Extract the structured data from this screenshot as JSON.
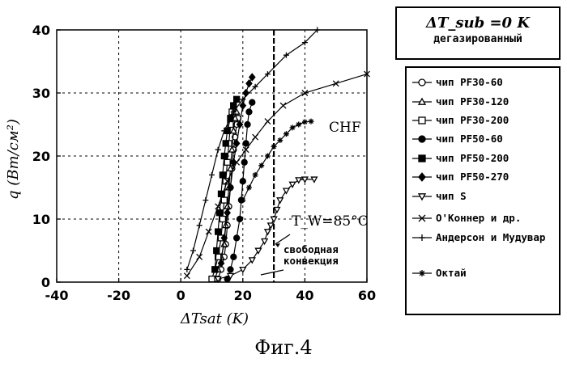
{
  "caption": "Фиг.4",
  "chart_data": {
    "type": "scatter",
    "xlabel": "ΔT_sat (K)",
    "ylabel": "q (Вт/см²)",
    "xlim": [
      -40,
      60
    ],
    "ylim": [
      0,
      40
    ],
    "xticks": [
      -40,
      -20,
      0,
      20,
      40,
      60
    ],
    "yticks": [
      0,
      10,
      20,
      30,
      40
    ],
    "xtick_labels": [
      "-40",
      "-20",
      "0",
      "20",
      "40",
      "60"
    ],
    "ytick_labels": [
      "0",
      "10",
      "20",
      "30",
      "40"
    ],
    "grid": "dashed",
    "annotations": {
      "chf": "CHF",
      "tw": "T_W=85°C",
      "free_convection": "свободная конвекция",
      "vertical_line_x": 30
    },
    "legend_title": "ΔT_sub =0 K",
    "legend_subtitle": "дегазированный",
    "series": [
      {
        "name": "чип PF30-60",
        "marker": "circle-open",
        "x": [
          12,
          13,
          14,
          14.5,
          15,
          15.5,
          16,
          16.5,
          17,
          17.5,
          18,
          18.5
        ],
        "y": [
          0.5,
          2,
          4,
          6,
          9,
          12,
          15,
          18,
          21,
          23,
          25,
          26
        ]
      },
      {
        "name": "чип PF30-120",
        "marker": "triangle-open",
        "x": [
          11,
          12,
          13,
          14,
          14.5,
          15,
          15.5,
          16,
          16.5,
          17,
          17.5,
          18
        ],
        "y": [
          0.5,
          2,
          4,
          6,
          9,
          12,
          15,
          18,
          21,
          24,
          26,
          27
        ]
      },
      {
        "name": "чип PF30-200",
        "marker": "square-open",
        "x": [
          10,
          11,
          12,
          13,
          13.5,
          14,
          14.5,
          15,
          15.5,
          16,
          16.5,
          17
        ],
        "y": [
          0.5,
          2,
          4,
          7,
          10,
          13,
          16,
          19,
          22,
          25,
          27,
          28
        ]
      },
      {
        "name": "чип PF50-60",
        "marker": "circle-filled",
        "x": [
          15,
          16,
          17,
          18,
          19,
          19.5,
          20,
          20.5,
          21,
          21.5,
          22,
          23
        ],
        "y": [
          0.5,
          2,
          4,
          7,
          10,
          13,
          16,
          19,
          22,
          25,
          27,
          28.5
        ]
      },
      {
        "name": "чип PF50-200",
        "marker": "square-filled",
        "x": [
          11,
          11.5,
          12,
          12.5,
          13,
          13.5,
          14,
          14.5,
          15,
          16,
          17,
          18
        ],
        "y": [
          2,
          5,
          8,
          11,
          14,
          17,
          20,
          22,
          24,
          26,
          28,
          29
        ]
      },
      {
        "name": "чип PF50-270",
        "marker": "diamond-filled",
        "x": [
          13,
          14,
          15,
          16,
          17,
          18,
          19,
          20,
          21,
          22,
          23
        ],
        "y": [
          3,
          7,
          11,
          15,
          19,
          22,
          25,
          28,
          30,
          31.5,
          32.5
        ]
      },
      {
        "name": "чип S",
        "marker": "triangle-down-open",
        "x": [
          12,
          16,
          20,
          23,
          25,
          27,
          28,
          29,
          30,
          31,
          32,
          34,
          36,
          38,
          40,
          43
        ],
        "y": [
          0.5,
          1,
          2,
          3.5,
          5,
          6.5,
          8,
          9,
          10,
          11.5,
          13,
          14.5,
          15.5,
          16.2,
          16.3,
          16.3
        ]
      },
      {
        "name": "O'Коннер и др.",
        "marker": "x",
        "x": [
          2,
          6,
          9,
          12,
          15,
          18,
          21,
          24,
          28,
          33,
          40,
          50,
          60
        ],
        "y": [
          1,
          4,
          8,
          12,
          16,
          19,
          21,
          23,
          25.5,
          28,
          30,
          31.5,
          33
        ]
      },
      {
        "name": "Андерсон и Мудувар",
        "marker": "plus",
        "x": [
          2,
          4,
          6,
          8,
          10,
          12,
          14,
          17,
          20,
          24,
          28,
          34,
          40,
          44
        ],
        "y": [
          2,
          5,
          9,
          13,
          17,
          21,
          24,
          27,
          29,
          31,
          33,
          36,
          38,
          40
        ]
      },
      {
        "name": "Октай",
        "marker": "star",
        "x": [
          20,
          22,
          24,
          26,
          28,
          30,
          32,
          34,
          36,
          38,
          40,
          42
        ],
        "y": [
          13,
          15,
          17,
          18.5,
          20,
          21.5,
          22.5,
          23.5,
          24.5,
          25,
          25.4,
          25.5
        ]
      }
    ]
  }
}
